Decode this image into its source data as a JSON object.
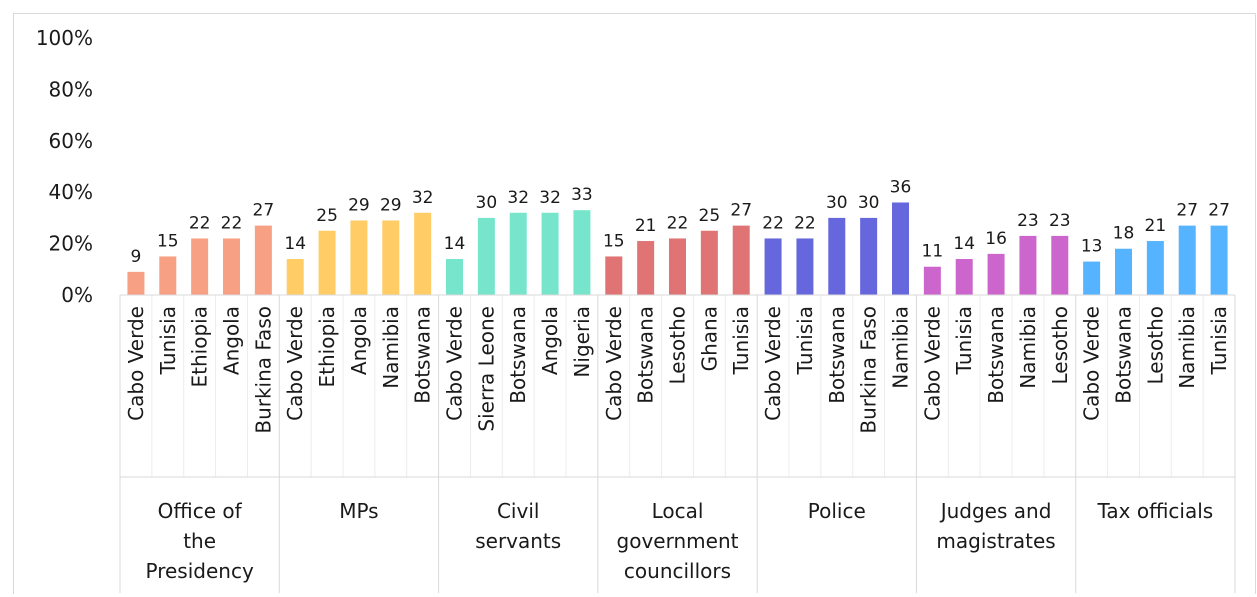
{
  "chart_data": {
    "type": "bar",
    "title": "",
    "xlabel": "",
    "ylabel": "",
    "ylim": [
      0,
      100
    ],
    "yticks": [
      "0%",
      "20%",
      "40%",
      "60%",
      "80%",
      "100%"
    ],
    "grid": false,
    "groups": [
      {
        "label_lines": [
          "Office of",
          "the",
          "Presidency"
        ],
        "color": "#F7A084",
        "categories": [
          "Cabo Verde",
          "Tunisia",
          "Ethiopia",
          "Angola",
          "Burkina Faso"
        ],
        "values": [
          9,
          15,
          22,
          22,
          27
        ]
      },
      {
        "label_lines": [
          "MPs"
        ],
        "color": "#FFCC66",
        "categories": [
          "Cabo Verde",
          "Ethiopia",
          "Angola",
          "Namibia",
          "Botswana"
        ],
        "values": [
          14,
          25,
          29,
          29,
          32
        ]
      },
      {
        "label_lines": [
          "Civil",
          "servants"
        ],
        "color": "#77E5CC",
        "categories": [
          "Cabo Verde",
          "Sierra Leone",
          "Botswana",
          "Angola",
          "Nigeria"
        ],
        "values": [
          14,
          30,
          32,
          32,
          33
        ]
      },
      {
        "label_lines": [
          "Local",
          "government",
          "councillors"
        ],
        "color": "#E07474",
        "categories": [
          "Cabo Verde",
          "Botswana",
          "Lesotho",
          "Ghana",
          "Tunisia"
        ],
        "values": [
          15,
          21,
          22,
          25,
          27
        ]
      },
      {
        "label_lines": [
          "Police"
        ],
        "color": "#6666DD",
        "categories": [
          "Cabo Verde",
          "Tunisia",
          "Botswana",
          "Burkina Faso",
          "Namibia"
        ],
        "values": [
          22,
          22,
          30,
          30,
          36
        ]
      },
      {
        "label_lines": [
          "Judges and",
          "magistrates"
        ],
        "color": "#CC66CC",
        "categories": [
          "Cabo Verde",
          "Tunisia",
          "Botswana",
          "Namibia",
          "Lesotho"
        ],
        "values": [
          11,
          14,
          16,
          23,
          23
        ]
      },
      {
        "label_lines": [
          "Tax officials"
        ],
        "color": "#55B3FF",
        "categories": [
          "Cabo Verde",
          "Botswana",
          "Lesotho",
          "Namibia",
          "Tunisia"
        ],
        "values": [
          13,
          18,
          21,
          27,
          27
        ]
      }
    ]
  }
}
